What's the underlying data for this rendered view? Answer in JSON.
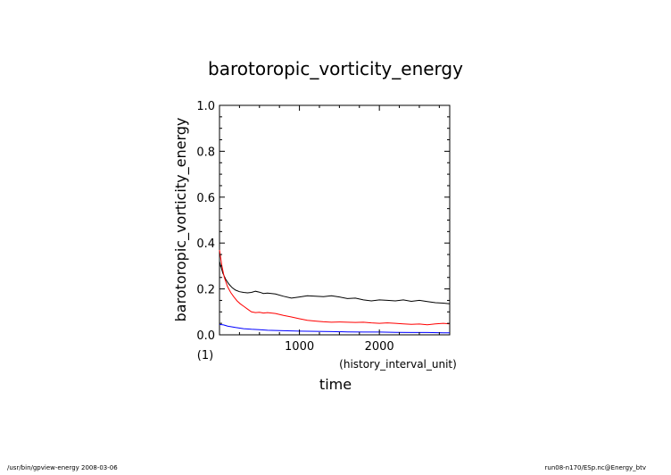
{
  "chart_data": {
    "type": "line",
    "title": "barotoropic_vorticity_energy",
    "xlabel": "time",
    "x_units": "(history_interval_unit)",
    "ylabel": "barotoropic_vorticity_energy",
    "y_units": "(1)",
    "xlim": [
      0,
      2880
    ],
    "ylim": [
      0.0,
      1.0
    ],
    "x_ticks": [
      1000,
      2000
    ],
    "x_tick_labels": [
      "1000",
      "2000"
    ],
    "y_ticks": [
      0.0,
      0.2,
      0.4,
      0.6,
      0.8,
      1.0
    ],
    "y_tick_labels": [
      "0.0",
      "0.2",
      "0.4",
      "0.6",
      "0.8",
      "1.0"
    ],
    "grid": false,
    "series": [
      {
        "color": "#000000",
        "x": [
          0,
          40,
          80,
          120,
          160,
          200,
          250,
          300,
          350,
          400,
          450,
          500,
          550,
          600,
          700,
          800,
          900,
          1000,
          1100,
          1200,
          1300,
          1400,
          1500,
          1600,
          1700,
          1800,
          1900,
          2000,
          2100,
          2200,
          2300,
          2400,
          2500,
          2600,
          2700,
          2800,
          2880
        ],
        "values": [
          0.32,
          0.27,
          0.24,
          0.22,
          0.205,
          0.195,
          0.188,
          0.185,
          0.183,
          0.185,
          0.19,
          0.186,
          0.18,
          0.182,
          0.178,
          0.168,
          0.16,
          0.165,
          0.17,
          0.168,
          0.166,
          0.17,
          0.165,
          0.158,
          0.16,
          0.152,
          0.148,
          0.152,
          0.15,
          0.148,
          0.152,
          0.146,
          0.15,
          0.145,
          0.14,
          0.138,
          0.135
        ]
      },
      {
        "color": "#ff0000",
        "x": [
          0,
          30,
          60,
          100,
          140,
          180,
          220,
          260,
          300,
          350,
          400,
          450,
          500,
          550,
          600,
          700,
          800,
          900,
          1000,
          1100,
          1200,
          1300,
          1400,
          1500,
          1600,
          1700,
          1800,
          1900,
          2000,
          2100,
          2200,
          2300,
          2400,
          2500,
          2600,
          2700,
          2800,
          2880
        ],
        "values": [
          0.37,
          0.3,
          0.25,
          0.21,
          0.185,
          0.165,
          0.148,
          0.135,
          0.125,
          0.112,
          0.1,
          0.097,
          0.098,
          0.095,
          0.097,
          0.093,
          0.085,
          0.078,
          0.07,
          0.063,
          0.06,
          0.057,
          0.055,
          0.056,
          0.055,
          0.054,
          0.055,
          0.052,
          0.05,
          0.052,
          0.05,
          0.048,
          0.046,
          0.047,
          0.044,
          0.048,
          0.05,
          0.048
        ]
      },
      {
        "color": "#0000ff",
        "x": [
          0,
          50,
          100,
          200,
          300,
          400,
          500,
          600,
          800,
          1000,
          1200,
          1400,
          1600,
          1800,
          2000,
          2200,
          2400,
          2600,
          2800,
          2880
        ],
        "values": [
          0.045,
          0.043,
          0.038,
          0.032,
          0.027,
          0.024,
          0.022,
          0.02,
          0.018,
          0.016,
          0.015,
          0.014,
          0.013,
          0.012,
          0.012,
          0.011,
          0.01,
          0.01,
          0.009,
          0.009
        ]
      }
    ]
  },
  "footer": {
    "left": "/usr/bin/gpview-energy  2008-03-06",
    "right": "run08-n170/ESp.nc@Energy_btv"
  }
}
